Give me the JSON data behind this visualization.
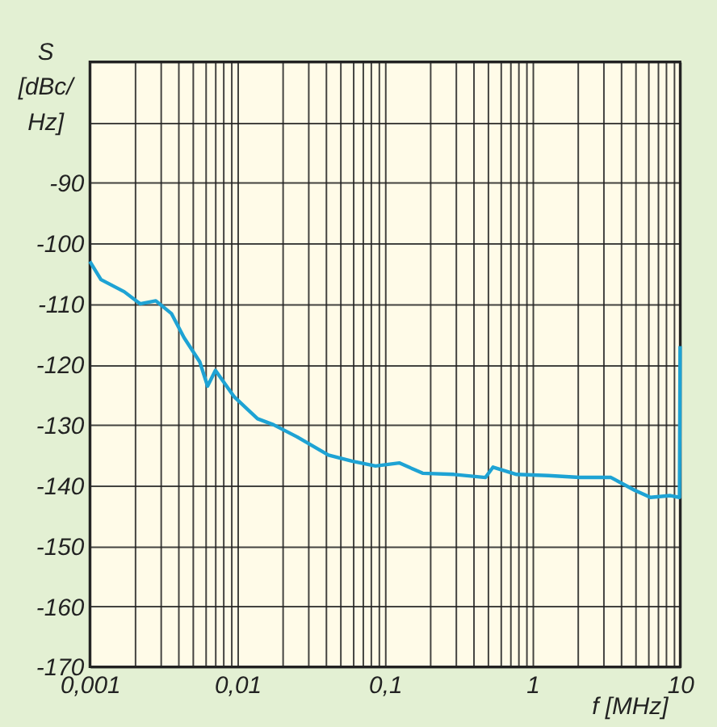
{
  "chart_data": {
    "type": "line",
    "xlabel": "f [MHz]",
    "ylabel": "S [dBc/Hz]",
    "x": [
      0.001,
      0.00119,
      0.00171,
      0.00219,
      0.0028,
      0.00357,
      0.00435,
      0.00556,
      0.00628,
      0.0071,
      0.00953,
      0.0137,
      0.0176,
      0.0254,
      0.0414,
      0.0598,
      0.0863,
      0.125,
      0.18,
      0.294,
      0.48,
      0.54,
      0.78,
      1.28,
      2.08,
      3.4,
      4.9,
      6.3,
      8.6,
      9.9,
      10
    ],
    "series": [
      {
        "color": "#1ea3d4",
        "values": [
          -103,
          -106,
          -108,
          -110,
          -109.5,
          -111.6,
          -115.6,
          -119.6,
          -123.6,
          -121,
          -125.4,
          -129,
          -130,
          -132,
          -135,
          -136,
          -136.8,
          -136.3,
          -138,
          -138.2,
          -138.7,
          -137,
          -138.2,
          -138.4,
          -138.7,
          -138.7,
          -140.8,
          -142,
          -141.7,
          -142,
          -117
        ]
      }
    ],
    "log": "x",
    "xlim": [
      0.001,
      10
    ],
    "ylim": [
      -170,
      -70
    ],
    "xticks": [
      {
        "value": 0.001,
        "label": "0,001"
      },
      {
        "value": 0.002,
        "label": null
      },
      {
        "value": 0.003,
        "label": null
      },
      {
        "value": 0.004,
        "label": null
      },
      {
        "value": 0.005,
        "label": null
      },
      {
        "value": 0.006,
        "label": null
      },
      {
        "value": 0.007,
        "label": null
      },
      {
        "value": 0.008,
        "label": null
      },
      {
        "value": 0.009,
        "label": null
      },
      {
        "value": 0.01,
        "label": "0,01"
      },
      {
        "value": 0.02,
        "label": null
      },
      {
        "value": 0.03,
        "label": null
      },
      {
        "value": 0.04,
        "label": null
      },
      {
        "value": 0.05,
        "label": null
      },
      {
        "value": 0.06,
        "label": null
      },
      {
        "value": 0.07,
        "label": null
      },
      {
        "value": 0.08,
        "label": null
      },
      {
        "value": 0.09,
        "label": null
      },
      {
        "value": 0.1,
        "label": "0,1"
      },
      {
        "value": 0.2,
        "label": null
      },
      {
        "value": 0.3,
        "label": null
      },
      {
        "value": 0.4,
        "label": null
      },
      {
        "value": 0.5,
        "label": null
      },
      {
        "value": 0.6,
        "label": null
      },
      {
        "value": 0.7,
        "label": null
      },
      {
        "value": 0.8,
        "label": null
      },
      {
        "value": 0.9,
        "label": null
      },
      1,
      {
        "value": 2,
        "label": null
      },
      {
        "value": 3,
        "label": null
      },
      {
        "value": 4,
        "label": null
      },
      {
        "value": 5,
        "label": null
      },
      {
        "value": 6,
        "label": null
      },
      {
        "value": 7,
        "label": null
      },
      {
        "value": 8,
        "label": null
      },
      {
        "value": 9,
        "label": null
      },
      10
    ],
    "yticks": [
      -170,
      -160,
      -150,
      -140,
      -130,
      -120,
      -110,
      -100,
      -90,
      {
        "value": -80,
        "label": null
      },
      {
        "value": -70,
        "label": null
      }
    ],
    "grid": true,
    "marker": "none",
    "line_style": "solid"
  }
}
